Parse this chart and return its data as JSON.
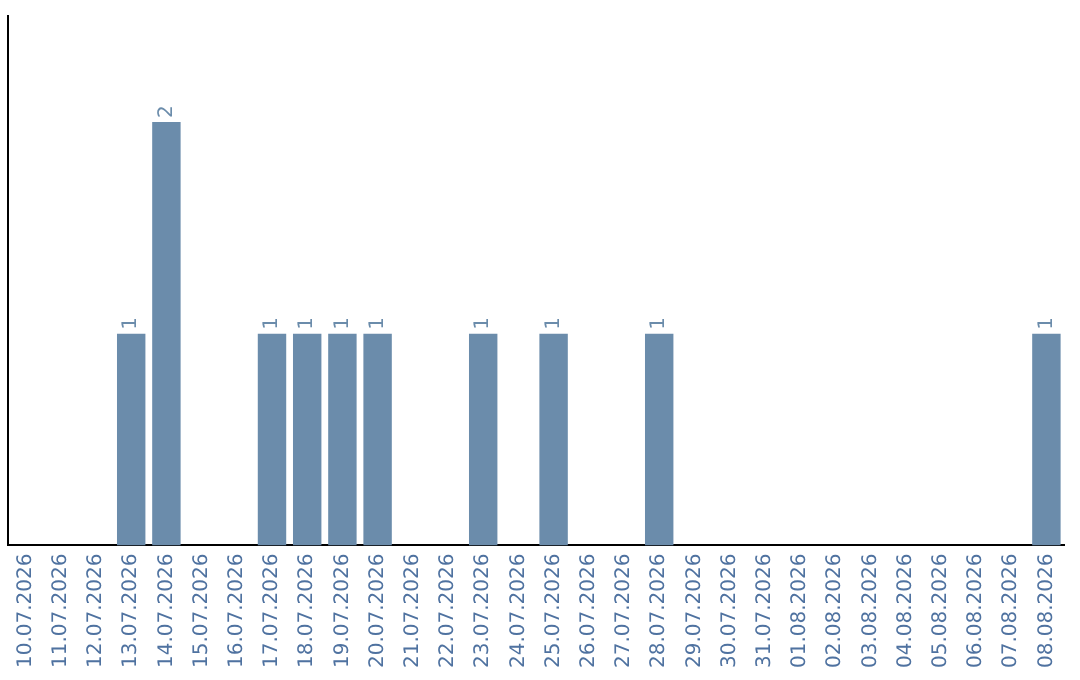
{
  "chart_data": {
    "type": "bar",
    "categories": [
      "10.07.2026",
      "11.07.2026",
      "12.07.2026",
      "13.07.2026",
      "14.07.2026",
      "15.07.2026",
      "16.07.2026",
      "17.07.2026",
      "18.07.2026",
      "19.07.2026",
      "20.07.2026",
      "21.07.2026",
      "22.07.2026",
      "23.07.2026",
      "24.07.2026",
      "25.07.2026",
      "26.07.2026",
      "27.07.2026",
      "28.07.2026",
      "29.07.2026",
      "30.07.2026",
      "31.07.2026",
      "01.08.2026",
      "02.08.2026",
      "03.08.2026",
      "04.08.2026",
      "05.08.2026",
      "06.08.2026",
      "07.08.2026",
      "08.08.2026"
    ],
    "values": [
      0,
      0,
      0,
      1,
      2,
      0,
      0,
      1,
      1,
      1,
      1,
      0,
      0,
      1,
      0,
      1,
      0,
      0,
      1,
      0,
      0,
      0,
      0,
      0,
      0,
      0,
      0,
      0,
      0,
      1
    ],
    "value_labels": [
      null,
      null,
      null,
      "1",
      "2",
      null,
      null,
      "1",
      "1",
      "1",
      "1",
      null,
      null,
      "1",
      null,
      "1",
      null,
      null,
      "1",
      null,
      null,
      null,
      null,
      null,
      null,
      null,
      null,
      null,
      null,
      "1"
    ],
    "color": "#6b8cab",
    "grid": false,
    "legend": false,
    "tick_labels": "x"
  }
}
